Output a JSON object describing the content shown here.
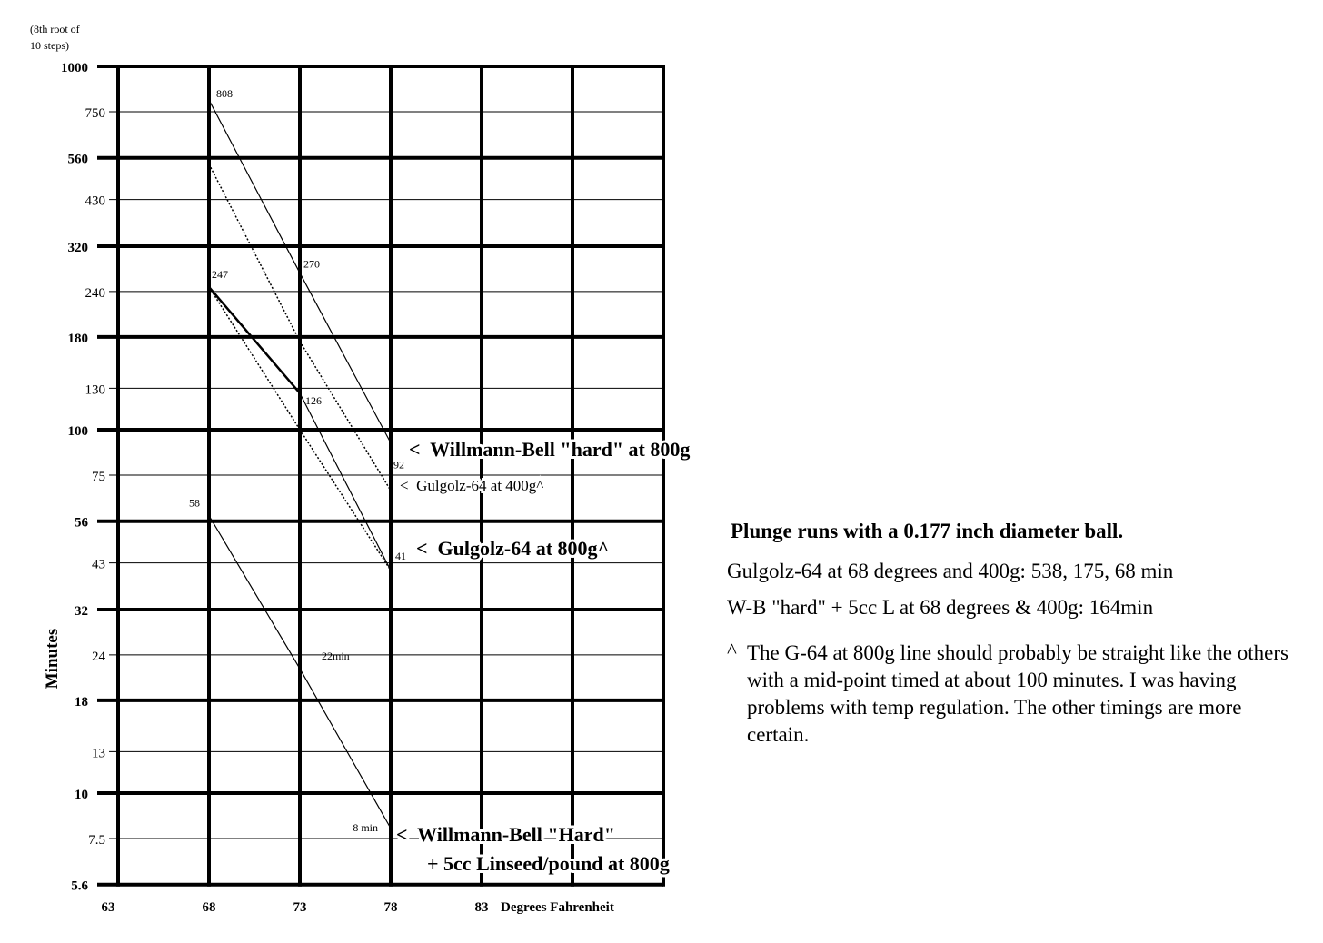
{
  "chart_data": {
    "type": "line",
    "yscale": "log",
    "y_note": "(8th root of 10 steps)",
    "ylabel": "Minutes",
    "xlabel": "Degrees Fahrenheit",
    "ylim": [
      5.6,
      1000
    ],
    "xlim": [
      63,
      93
    ],
    "y_ticks": [
      1000,
      750,
      560,
      430,
      320,
      240,
      180,
      130,
      100,
      75,
      56,
      43,
      32,
      24,
      18,
      13,
      10,
      7.5,
      5.6
    ],
    "y_tick_labels": [
      "1000",
      "750",
      "560",
      "430",
      "320",
      "240",
      "180",
      "130",
      "100",
      "75",
      "56",
      "43",
      "32",
      "24",
      "18",
      "13",
      "10",
      "7.5",
      "5.6"
    ],
    "x_ticks": [
      63,
      68,
      73,
      78,
      83
    ],
    "x_tick_labels": [
      "63",
      "68",
      "73",
      "78",
      "83"
    ],
    "grid": true,
    "series": [
      {
        "name": "Willmann-Bell \"hard\" at 800g",
        "style": "solid",
        "x": [
          68,
          73,
          78
        ],
        "y": [
          808,
          270,
          92
        ],
        "point_labels": [
          "808",
          "270",
          "92"
        ]
      },
      {
        "name": "Gulgolz-64 at 400g^",
        "style": "dotted",
        "x": [
          68,
          73,
          78
        ],
        "y": [
          538,
          175,
          68
        ],
        "point_labels": [
          "",
          "",
          ""
        ]
      },
      {
        "name": "Gulgolz-64 at 800g^",
        "style": "thick-then-thin",
        "x": [
          68,
          73,
          78
        ],
        "y": [
          247,
          126,
          41
        ],
        "point_labels": [
          "247",
          "126",
          "41"
        ]
      },
      {
        "name": "",
        "style": "dotted",
        "x": [
          68,
          73,
          78
        ],
        "y": [
          247,
          100,
          41
        ],
        "point_labels": [
          "",
          "",
          ""
        ]
      },
      {
        "name": "Willmann-Bell \"Hard\" + 5cc Linseed/pound at 800g",
        "style": "solid",
        "x": [
          68,
          73,
          78
        ],
        "y": [
          58,
          22,
          8
        ],
        "point_labels": [
          "58",
          "22min",
          "8 min"
        ]
      }
    ],
    "annotations": {
      "wb_hard": "<  Willmann-Bell \"hard\" at 800g",
      "g64_400": "<  Gulgolz-64 at 400g^",
      "g64_800": "<  Gulgolz-64 at 800g^",
      "wb_linseed_1": "<  Willmann-Bell \"Hard\"",
      "wb_linseed_2": "+ 5cc Linseed/pound at 800g"
    }
  },
  "notes": {
    "title": "Plunge runs with a 0.177 inch diameter ball.",
    "line1": "Gulgolz-64 at 68 degrees and 400g: 538, 175, 68 min",
    "line2": "W-B \"hard\" + 5cc L at 68 degrees & 400g: 164min",
    "caret": "^",
    "footnote": "The G-64 at 800g line should probably be straight like the others with a mid-point timed at about 100 minutes.  I was having problems with temp regulation.  The other timings are more certain."
  }
}
